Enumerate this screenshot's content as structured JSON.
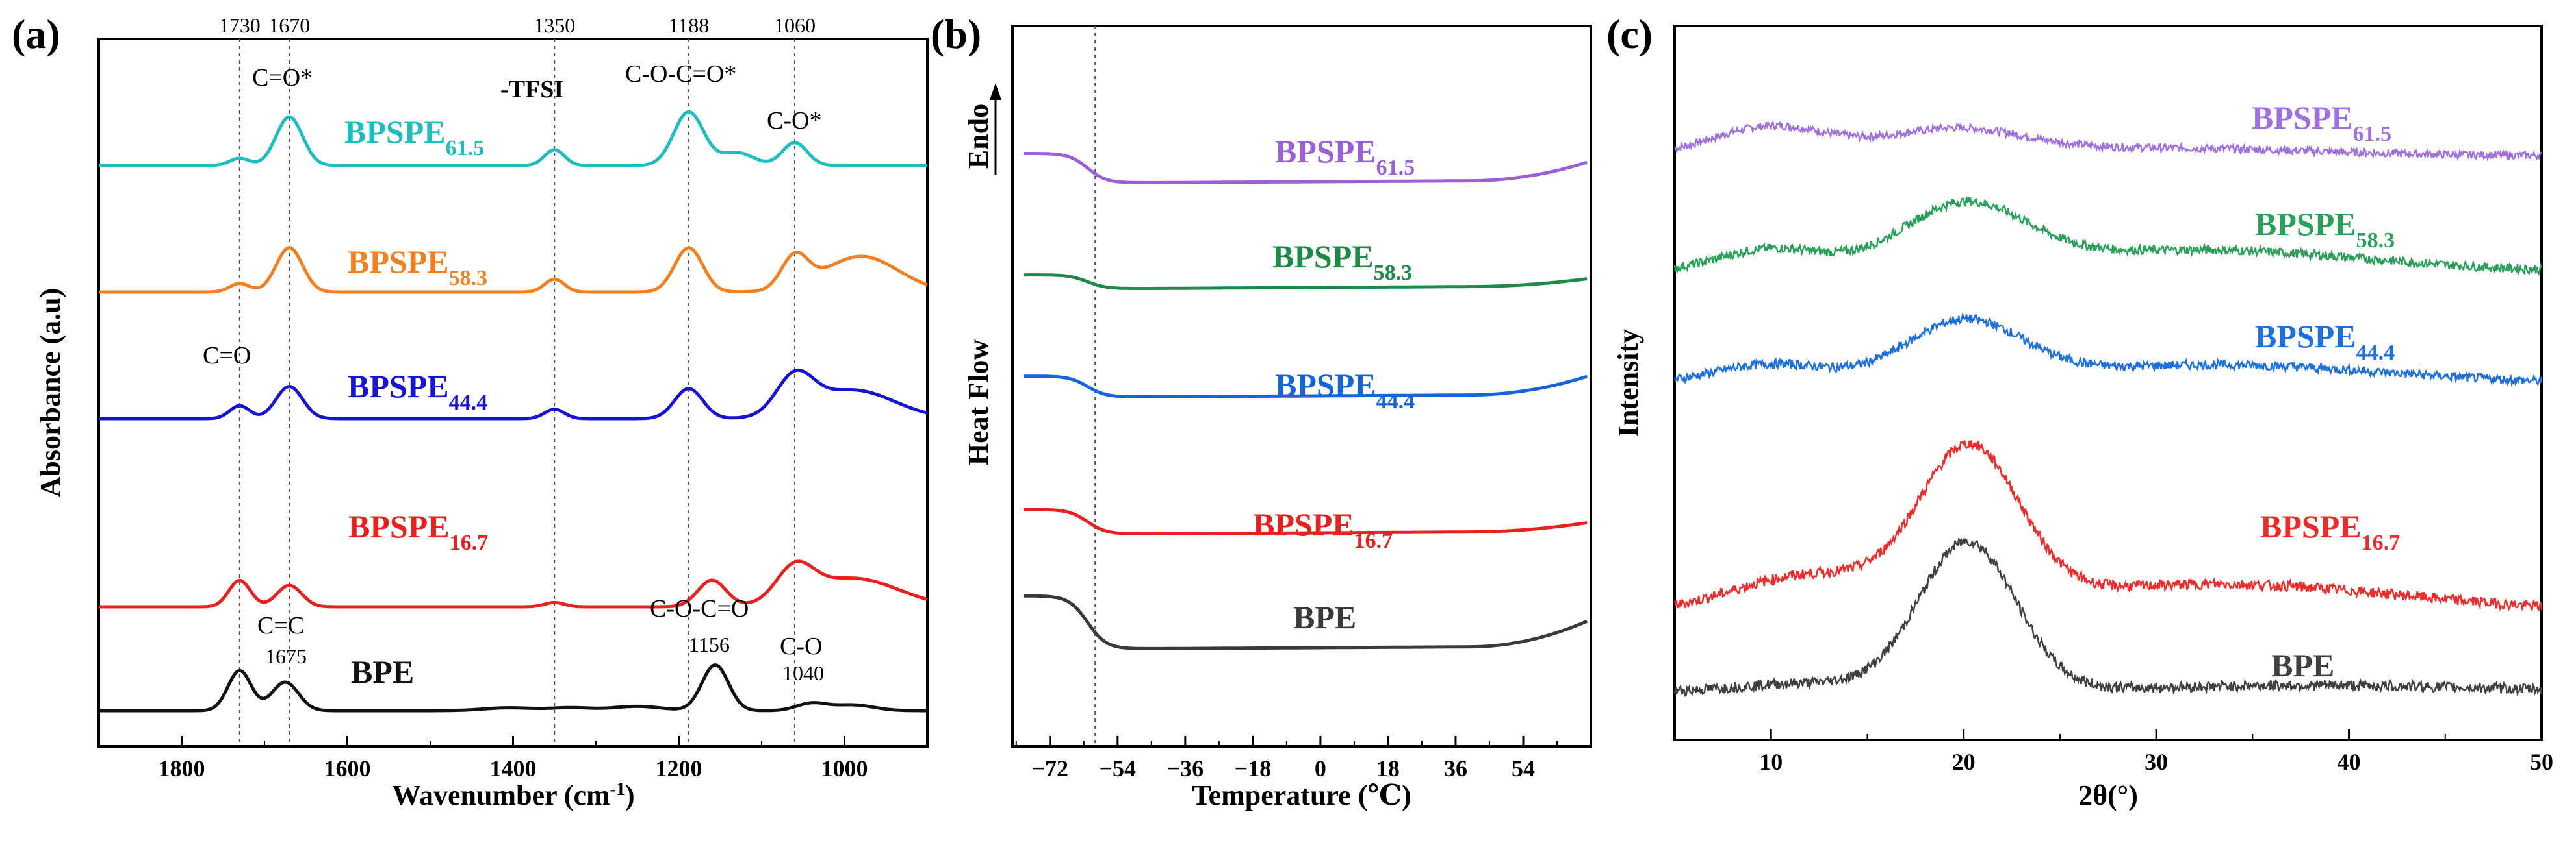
{
  "chart_data": [
    {
      "panel": "(a)",
      "type": "line",
      "title": "",
      "xlabel": "Wavenumber (cm",
      "xlabel_sup": "-1",
      "xlabel_close": ")",
      "ylabel": "Absorbance (a.u)",
      "xlim": [
        1900,
        900
      ],
      "x_reversed": true,
      "xticks": [
        1800,
        1600,
        1400,
        1200,
        1000
      ],
      "yticks": false,
      "reference_lines": [
        1730,
        1670,
        1350,
        1188,
        1060
      ],
      "top_labels": [
        "1730",
        "1670",
        "1350",
        "1188",
        "1060"
      ],
      "series": [
        {
          "name": "BPSPE",
          "subscript": "61.5",
          "color": "#1fbdbd",
          "offset": 4,
          "peaks": [
            [
              1730,
              0.1,
              12
            ],
            [
              1670,
              0.68,
              16
            ],
            [
              1350,
              0.22,
              12
            ],
            [
              1188,
              0.75,
              18
            ],
            [
              1130,
              0.18,
              20
            ],
            [
              1060,
              0.32,
              15
            ]
          ]
        },
        {
          "name": "BPSPE",
          "subscript": "58.3",
          "color": "#f08020",
          "offset": 3,
          "peaks": [
            [
              1730,
              0.12,
              12
            ],
            [
              1670,
              0.62,
              16
            ],
            [
              1350,
              0.18,
              12
            ],
            [
              1188,
              0.62,
              17
            ],
            [
              1060,
              0.45,
              16
            ],
            [
              980,
              0.5,
              45
            ]
          ]
        },
        {
          "name": "BPSPE",
          "subscript": "44.4",
          "color": "#1515d0",
          "offset": 2,
          "peaks": [
            [
              1730,
              0.18,
              12
            ],
            [
              1670,
              0.45,
              16
            ],
            [
              1350,
              0.13,
              12
            ],
            [
              1188,
              0.42,
              17
            ],
            [
              1060,
              0.52,
              22
            ],
            [
              990,
              0.4,
              50
            ]
          ]
        },
        {
          "name": "BPSPE",
          "subscript": "16.7",
          "color": "#e82020",
          "offset": 1,
          "peaks": [
            [
              1730,
              0.37,
              13
            ],
            [
              1670,
              0.3,
              15
            ],
            [
              1350,
              0.06,
              12
            ],
            [
              1160,
              0.37,
              17
            ],
            [
              1060,
              0.45,
              22
            ],
            [
              990,
              0.4,
              55
            ]
          ]
        },
        {
          "name": "BPE",
          "subscript": "",
          "color": "#111111",
          "offset": 0,
          "peaks": [
            [
              1730,
              0.56,
              14
            ],
            [
              1675,
              0.4,
              16
            ],
            [
              1405,
              0.04,
              30
            ],
            [
              1330,
              0.04,
              25
            ],
            [
              1250,
              0.06,
              30
            ],
            [
              1156,
              0.64,
              16
            ],
            [
              1040,
              0.1,
              18
            ],
            [
              990,
              0.08,
              25
            ]
          ]
        }
      ],
      "annotations": [
        "C=O*",
        "-TFSI",
        "C-O-C=O*",
        "C-O*",
        "C=O",
        "C=C",
        "1675",
        "C-O-C=O",
        "1156",
        "C-O",
        "1040"
      ]
    },
    {
      "panel": "(b)",
      "type": "line",
      "title": "",
      "xlabel": "Temperature (℃)",
      "ylabel": "Heat Flow",
      "ylabel_extra": "Endo",
      "xlim": [
        -82,
        72
      ],
      "xticks": [
        -72,
        -54,
        -36,
        -18,
        0,
        18,
        36,
        54
      ],
      "xtick_labels": [
        "−72",
        "−54",
        "−36",
        "−18",
        "0",
        "18",
        "36",
        "54"
      ],
      "yticks": false,
      "reference_lines": [
        -60
      ],
      "series": [
        {
          "name": "BPSPE",
          "subscript": "61.5",
          "color": "#9b5fd6",
          "offset": 4,
          "step": 0.42,
          "tail": 0.25
        },
        {
          "name": "BPSPE",
          "subscript": "58.3",
          "color": "#1f8a48",
          "offset": 3,
          "step": 0.2,
          "tail": 0.1
        },
        {
          "name": "BPSPE",
          "subscript": "44.4",
          "color": "#1565d8",
          "offset": 2,
          "step": 0.3,
          "tail": 0.25
        },
        {
          "name": "BPSPE",
          "subscript": "16.7",
          "color": "#e82020",
          "offset": 1,
          "step": 0.35,
          "tail": 0.12
        },
        {
          "name": "BPE",
          "subscript": "",
          "color": "#3a3a3a",
          "offset": 0,
          "step": 0.75,
          "tail": 0.35
        }
      ]
    },
    {
      "panel": "(c)",
      "type": "line",
      "title": "",
      "xlabel": "2θ(°)",
      "ylabel": "Intensity",
      "xlim": [
        5,
        50
      ],
      "xticks": [
        10,
        20,
        30,
        40,
        50
      ],
      "yticks": false,
      "series": [
        {
          "name": "BPSPE",
          "subscript": "61.5",
          "color": "#a070e0",
          "offset": 4,
          "peaks": [
            [
              10,
              0.45,
              3.0
            ],
            [
              19.5,
              0.38,
              3.5
            ],
            [
              30,
              0.12,
              8
            ]
          ],
          "noise": 0.06
        },
        {
          "name": "BPSPE",
          "subscript": "58.3",
          "color": "#2aa05a",
          "offset": 3,
          "peaks": [
            [
              10,
              0.35,
              2.8
            ],
            [
              20,
              0.95,
              3.2
            ],
            [
              32,
              0.35,
              9
            ]
          ],
          "noise": 0.07
        },
        {
          "name": "BPSPE",
          "subscript": "44.4",
          "color": "#1e6fe0",
          "offset": 2,
          "peaks": [
            [
              10,
              0.3,
              3.0
            ],
            [
              20,
              0.9,
              3.0
            ],
            [
              33,
              0.3,
              9
            ]
          ],
          "noise": 0.07
        },
        {
          "name": "BPSPE",
          "subscript": "16.7",
          "color": "#f02a2a",
          "offset": 1,
          "peaks": [
            [
              12,
              0.55,
              4.0
            ],
            [
              20.3,
              2.35,
              2.6
            ],
            [
              33,
              0.45,
              10
            ]
          ],
          "noise": 0.08
        },
        {
          "name": "BPE",
          "subscript": "",
          "color": "#404040",
          "offset": 0,
          "peaks": [
            [
              12,
              0.15,
              4.0
            ],
            [
              20.2,
              2.3,
              2.5
            ],
            [
              38,
              0.12,
              10
            ]
          ],
          "noise": 0.08
        }
      ]
    }
  ]
}
